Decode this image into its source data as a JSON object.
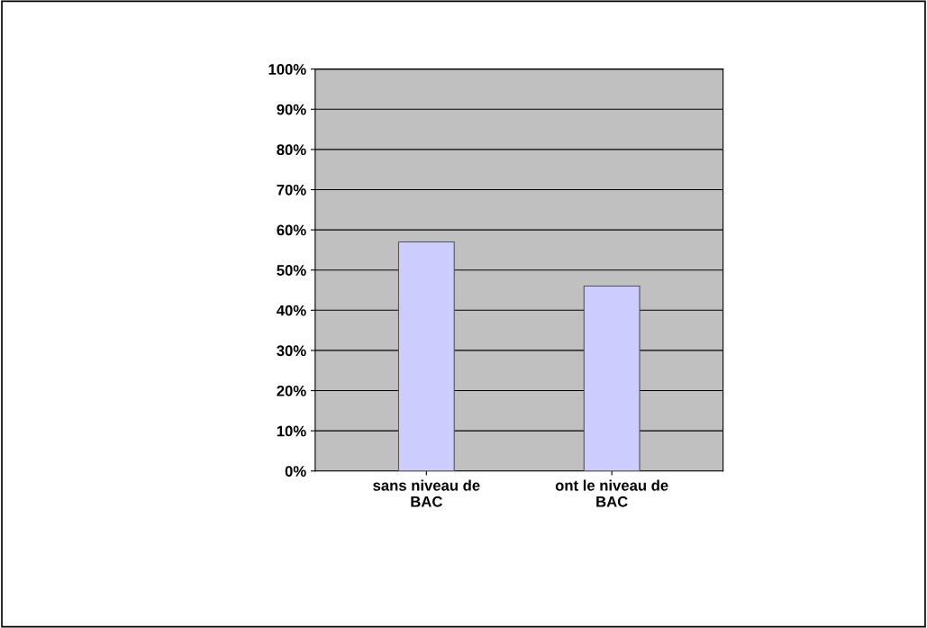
{
  "chart_data": {
    "type": "bar",
    "categories": [
      "sans niveau de\nBAC",
      "ont le niveau de\nBAC"
    ],
    "values": [
      57,
      46
    ],
    "color": "#ccccff",
    "ylim": [
      0,
      100
    ],
    "yticks": [
      {
        "value": 0,
        "label": "0%"
      },
      {
        "value": 10,
        "label": "10%"
      },
      {
        "value": 20,
        "label": "20%"
      },
      {
        "value": 30,
        "label": "30%"
      },
      {
        "value": 40,
        "label": "40%"
      },
      {
        "value": 50,
        "label": "50%"
      },
      {
        "value": 60,
        "label": "60%"
      },
      {
        "value": 70,
        "label": "70%"
      },
      {
        "value": 80,
        "label": "80%"
      },
      {
        "value": 90,
        "label": "90%"
      },
      {
        "value": 100,
        "label": "100%"
      }
    ],
    "grid": "y"
  }
}
